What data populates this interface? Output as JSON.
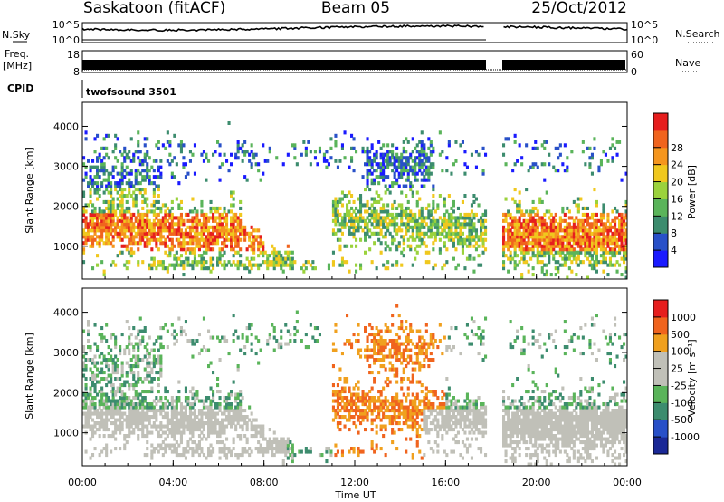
{
  "header": {
    "station": "Saskatoon (fitACF)",
    "beam": "Beam 05",
    "date": "25/Oct/2012"
  },
  "nsky_panel": {
    "left_label": "N.Sky",
    "right_label": "N.Search",
    "left_ticks": [
      "10^5",
      "10^0"
    ],
    "right_ticks": [
      "10^5",
      "10^0"
    ]
  },
  "freq_panel": {
    "left_label_line1": "Freq.",
    "left_label_line2": "[MHz]",
    "left_ticks": [
      "18",
      "8"
    ],
    "right_ticks": [
      "60",
      "0"
    ],
    "right_label": "Nave"
  },
  "cpid_panel": {
    "label": "CPID",
    "program": "twofsound 3501"
  },
  "colors": {
    "power_scale": [
      "#1a1aff",
      "#2850c8",
      "#3c8c6e",
      "#5ab45a",
      "#9bd23c",
      "#f0c81e",
      "#f5961e",
      "#f0641e",
      "#e61e1e"
    ],
    "velocity_scale": [
      "#1a2896",
      "#2850c8",
      "#3c8c6e",
      "#5ab45a",
      "#c0c0b8",
      "#c0c0b8",
      "#f0a01e",
      "#f0641e",
      "#e61e1e"
    ]
  },
  "chart_data": [
    {
      "type": "heatmap",
      "name": "power",
      "ylabel": "Slant Range [km]",
      "yticks": [
        1000,
        2000,
        3000,
        4000
      ],
      "ylim": [
        180,
        4600
      ],
      "xlim": [
        0,
        24
      ],
      "xtick_labels": [
        "00:00",
        "04:00",
        "08:00",
        "12:00",
        "16:00",
        "20:00",
        "00:00"
      ],
      "colorbar_label": "Power [dB]",
      "colorbar_ticks": [
        "4",
        "8",
        "12",
        "16",
        "20",
        "24",
        "28"
      ],
      "data_gap_hours": [
        17.75,
        18.5
      ]
    },
    {
      "type": "heatmap",
      "name": "velocity",
      "ylabel": "Slant Range [km]",
      "yticks": [
        1000,
        2000,
        3000,
        4000
      ],
      "ylim": [
        180,
        4600
      ],
      "xlim": [
        0,
        24
      ],
      "xtick_labels": [
        "00:00",
        "04:00",
        "08:00",
        "12:00",
        "16:00",
        "20:00",
        "00:00"
      ],
      "xlabel": "Time UT",
      "colorbar_label": "Velocity [m s⁻¹]",
      "colorbar_ticks": [
        "1000",
        "500",
        "100",
        "25",
        "-25",
        "-100",
        "-500",
        "-1000"
      ],
      "data_gap_hours": [
        17.75,
        18.5
      ]
    }
  ]
}
